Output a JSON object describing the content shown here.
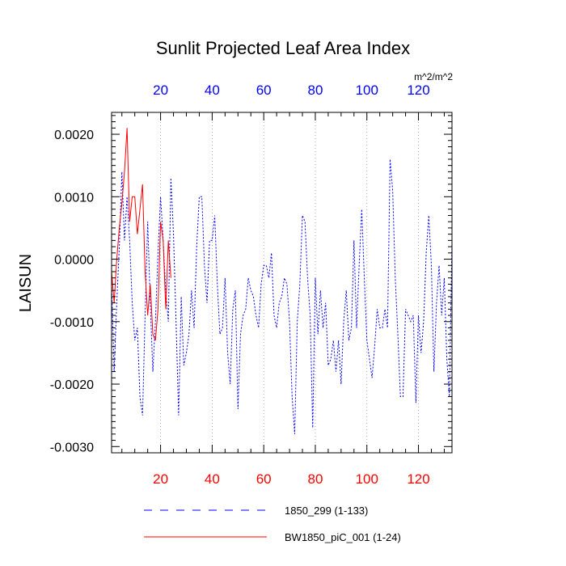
{
  "chart_data": {
    "type": "line",
    "title": "Sunlit Projected Leaf Area Index",
    "ylabel": "LAISUN",
    "units": "m^2/m^2",
    "xlim": [
      1,
      133
    ],
    "ylim": [
      -0.0031,
      0.00235
    ],
    "x_ticks": [
      20,
      40,
      60,
      80,
      100,
      120
    ],
    "y_ticks": [
      0.002,
      0.001,
      0.0,
      -0.001,
      -0.002,
      -0.003
    ],
    "y_tick_labels": [
      "0.0020",
      "0.0010",
      "0.0000",
      "-0.0010",
      "-0.0020",
      "-0.0030"
    ],
    "bottom_axis_color": "#ff0000",
    "top_axis_color": "#0000ff",
    "grid": "vertical dotted",
    "legend_position": "bottom",
    "series": [
      {
        "name": "1850_299 (1-133)",
        "color": "#0000ff",
        "dash": "dotted",
        "x_start": 1,
        "values": [
          -0.0004,
          -0.0018,
          -0.0007,
          0.0002,
          0.0014,
          0.0003,
          0.001,
          0.0003,
          -0.0007,
          -0.0013,
          -0.0011,
          -0.0022,
          -0.0025,
          -0.0009,
          0.0006,
          -0.0007,
          -0.0018,
          -0.001,
          0.0001,
          0.001,
          0.0003,
          -0.0005,
          -0.001,
          0.0013,
          0.0004,
          -0.001,
          -0.0025,
          -0.0006,
          -0.0017,
          -0.0015,
          -0.0012,
          -0.0005,
          -0.0011,
          0.0002,
          0.001,
          0.001,
          -0.0001,
          -0.0007,
          0.0003,
          0.0003,
          0.0007,
          -0.0004,
          -0.0012,
          -0.0011,
          -0.0003,
          -0.0015,
          -0.002,
          -0.0008,
          -0.0005,
          -0.0024,
          -0.0012,
          -0.0009,
          -0.0008,
          -0.0003,
          -0.0005,
          -0.0006,
          -0.0009,
          -0.0011,
          -0.0004,
          -0.0001,
          -0.0001,
          -0.0003,
          0.0001,
          -0.0009,
          -0.0011,
          -0.0007,
          -0.0006,
          -0.0003,
          -0.0004,
          -0.001,
          -0.0022,
          -0.0028,
          -0.001,
          -0.0004,
          0.0007,
          0.0006,
          -0.0003,
          -0.0009,
          -0.0027,
          -0.0003,
          -0.0012,
          -0.0005,
          -0.0011,
          -0.0007,
          -0.0017,
          -0.0016,
          -0.0013,
          -0.0018,
          -0.0013,
          -0.002,
          -0.001,
          -0.0005,
          -0.0013,
          -0.0011,
          0.0003,
          -0.0011,
          -0.0001,
          0.0008,
          -0.0003,
          -0.0013,
          -0.0016,
          -0.0019,
          -0.0014,
          -0.0008,
          -0.0011,
          -0.0011,
          -0.0008,
          -0.0011,
          0.0016,
          0.0011,
          -0.0003,
          -0.0012,
          -0.0022,
          -0.0022,
          -0.0008,
          -0.0009,
          -0.001,
          -0.0009,
          -0.0023,
          -0.0009,
          -0.0015,
          -0.001,
          0.0001,
          0.0007,
          -0.0001,
          -0.0018,
          -0.0007,
          -0.0001,
          -0.0009,
          -0.0003,
          -0.0016,
          -0.0022,
          0.0003
        ]
      },
      {
        "name": "BW1850_piC_001 (1-24)",
        "color": "#ff0000",
        "dash": "solid",
        "x_start": 1,
        "values": [
          -0.0002,
          -0.0007,
          0.0,
          0.0005,
          0.0009,
          0.0014,
          0.0021,
          0.0006,
          0.001,
          0.001,
          0.0004,
          0.0008,
          0.0012,
          -0.0002,
          -0.0009,
          -0.0004,
          -0.0012,
          -0.0013,
          -0.0008,
          0.0006,
          0.0003,
          -0.0008,
          0.0003,
          -0.0003
        ]
      }
    ]
  }
}
